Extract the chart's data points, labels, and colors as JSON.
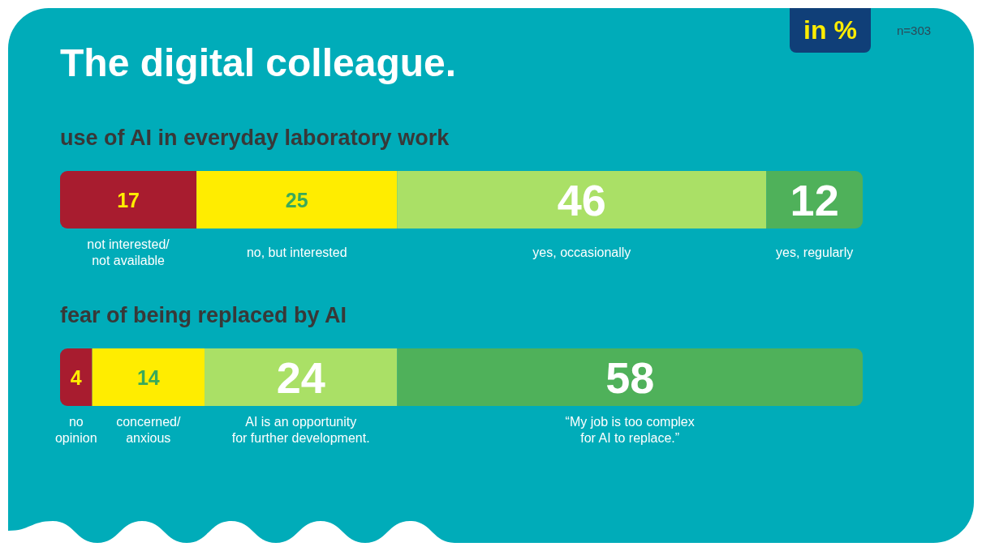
{
  "chart_data": [
    {
      "type": "other",
      "title": "The digital colleague.",
      "annotations": [
        "in %",
        "n=303"
      ]
    },
    {
      "type": "bar",
      "orientation": "horizontal",
      "stacked": true,
      "title": "use of AI in everyday laboratory work",
      "categories": [
        null
      ],
      "data_labels": true,
      "series": [
        {
          "name": "not interested/\nnot available",
          "color": "#a81c2f",
          "values": [
            17
          ]
        },
        {
          "name": "no, but interested",
          "color": "#ffed00",
          "values": [
            25
          ]
        },
        {
          "name": "yes, occasionally",
          "color": "#aae066",
          "values": [
            46
          ]
        },
        {
          "name": "yes, regularly",
          "color": "#4fb15a",
          "values": [
            12
          ]
        }
      ]
    },
    {
      "type": "bar",
      "orientation": "horizontal",
      "stacked": true,
      "title": "fear of being replaced by AI",
      "categories": [
        null
      ],
      "data_labels": true,
      "series": [
        {
          "name": "no\nopinion",
          "color": "#a81c2f",
          "values": [
            4
          ]
        },
        {
          "name": "concerned/\nanxious",
          "color": "#ffed00",
          "values": [
            14
          ]
        },
        {
          "name": "AI is an opportunity\nfor further development.",
          "color": "#aae066",
          "values": [
            24
          ]
        },
        {
          "name": "“My job is too complex\nfor AI to replace.”",
          "color": "#4fb15a",
          "values": [
            58
          ]
        }
      ]
    }
  ]
}
